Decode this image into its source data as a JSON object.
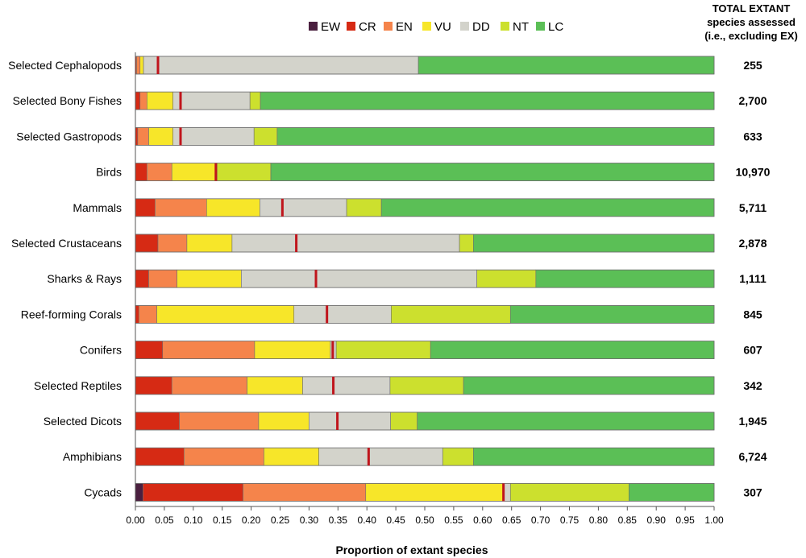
{
  "chart_data": {
    "type": "bar",
    "orientation": "horizontal",
    "stacked": true,
    "xlabel": "Proportion of extant species",
    "xlim": [
      0,
      1
    ],
    "xticks": [
      "0.00",
      "0.05",
      "0.10",
      "0.15",
      "0.20",
      "0.25",
      "0.30",
      "0.35",
      "0.40",
      "0.45",
      "0.50",
      "0.55",
      "0.60",
      "0.65",
      "0.70",
      "0.75",
      "0.80",
      "0.85",
      "0.90",
      "0.95",
      "1.00"
    ],
    "legend_position": "top",
    "series_names": [
      "EW",
      "CR",
      "EN",
      "VU",
      "DD",
      "NT",
      "LC"
    ],
    "colors": {
      "EW": "#4a1f3f",
      "CR": "#d62a14",
      "EN": "#f5844b",
      "VU": "#f7e629",
      "DD": "#d3d3cb",
      "NT": "#cce02e",
      "LC": "#5bbf56",
      "marker": "#c0151c"
    },
    "total_header": [
      "TOTAL EXTANT",
      "species assessed",
      "(i.e., excluding EX)"
    ],
    "categories": [
      {
        "name": "Selected Cephalopods",
        "total": "255",
        "marker": 0.039,
        "segments": {
          "EW": 0,
          "CR": 0.002,
          "EN": 0.006,
          "VU": 0.006,
          "DD": 0.475,
          "NT": 0,
          "LC": 0.511
        }
      },
      {
        "name": "Selected Bony Fishes",
        "total": "2,700",
        "marker": 0.078,
        "segments": {
          "EW": 0,
          "CR": 0.008,
          "EN": 0.012,
          "VU": 0.045,
          "DD": 0.133,
          "NT": 0.018,
          "LC": 0.784
        }
      },
      {
        "name": "Selected Gastropods",
        "total": "633",
        "marker": 0.078,
        "segments": {
          "EW": 0,
          "CR": 0.004,
          "EN": 0.019,
          "VU": 0.042,
          "DD": 0.14,
          "NT": 0.04,
          "LC": 0.755
        }
      },
      {
        "name": "Birds",
        "total": "10,970",
        "marker": 0.139,
        "segments": {
          "EW": 0,
          "CR": 0.02,
          "EN": 0.043,
          "VU": 0.078,
          "DD": 0,
          "NT": 0.093,
          "LC": 0.766
        }
      },
      {
        "name": "Mammals",
        "total": "5,711",
        "marker": 0.254,
        "segments": {
          "EW": 0,
          "CR": 0.034,
          "EN": 0.089,
          "VU": 0.092,
          "DD": 0.15,
          "NT": 0.06,
          "LC": 0.575
        }
      },
      {
        "name": "Selected Crustaceans",
        "total": "2,878",
        "marker": 0.278,
        "segments": {
          "EW": 0,
          "CR": 0.039,
          "EN": 0.05,
          "VU": 0.078,
          "DD": 0.393,
          "NT": 0.024,
          "LC": 0.416
        }
      },
      {
        "name": "Sharks & Rays",
        "total": "1,111",
        "marker": 0.312,
        "segments": {
          "EW": 0,
          "CR": 0.023,
          "EN": 0.049,
          "VU": 0.111,
          "DD": 0.407,
          "NT": 0.102,
          "LC": 0.308
        }
      },
      {
        "name": "Reef-forming Corals",
        "total": "845",
        "marker": 0.331,
        "segments": {
          "EW": 0,
          "CR": 0.006,
          "EN": 0.031,
          "VU": 0.237,
          "DD": 0.168,
          "NT": 0.206,
          "LC": 0.352
        }
      },
      {
        "name": "Conifers",
        "total": "607",
        "marker": 0.341,
        "segments": {
          "EW": 0,
          "CR": 0.047,
          "EN": 0.159,
          "VU": 0.131,
          "DD": 0.01,
          "NT": 0.163,
          "LC": 0.49
        }
      },
      {
        "name": "Selected Reptiles",
        "total": "342",
        "marker": 0.342,
        "segments": {
          "EW": 0,
          "CR": 0.063,
          "EN": 0.13,
          "VU": 0.096,
          "DD": 0.151,
          "NT": 0.127,
          "LC": 0.433
        }
      },
      {
        "name": "Selected Dicots",
        "total": "1,945",
        "marker": 0.349,
        "segments": {
          "EW": 0,
          "CR": 0.076,
          "EN": 0.137,
          "VU": 0.087,
          "DD": 0.141,
          "NT": 0.046,
          "LC": 0.513
        }
      },
      {
        "name": "Amphibians",
        "total": "6,724",
        "marker": 0.403,
        "segments": {
          "EW": 0,
          "CR": 0.084,
          "EN": 0.138,
          "VU": 0.095,
          "DD": 0.214,
          "NT": 0.053,
          "LC": 0.416
        }
      },
      {
        "name": "Cycads",
        "total": "307",
        "marker": 0.636,
        "segments": {
          "EW": 0.013,
          "CR": 0.173,
          "EN": 0.212,
          "VU": 0.237,
          "DD": 0.013,
          "NT": 0.205,
          "LC": 0.147
        }
      }
    ]
  }
}
